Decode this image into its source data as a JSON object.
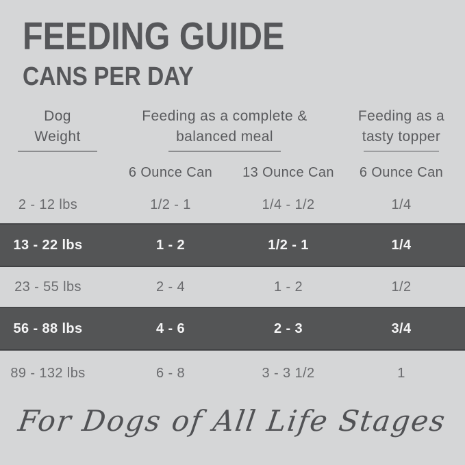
{
  "header": {
    "title": "FEEDING GUIDE",
    "subtitle": "CANS PER DAY"
  },
  "table": {
    "column_groups": [
      {
        "line1": "Dog",
        "line2": "Weight"
      },
      {
        "line1": "Feeding as a complete &",
        "line2": "balanced meal"
      },
      {
        "line1": "Feeding as a",
        "line2": "tasty topper"
      }
    ],
    "sub_headers": [
      "6 Ounce Can",
      "13 Ounce Can",
      "6 Ounce Can"
    ],
    "rows": [
      {
        "weight": "2 - 12 lbs",
        "meal_6oz": "1/2 - 1",
        "meal_13oz": "1/4 - 1/2",
        "topper_6oz": "1/4",
        "highlight": false
      },
      {
        "weight": "13 - 22 lbs",
        "meal_6oz": "1 - 2",
        "meal_13oz": "1/2 - 1",
        "topper_6oz": "1/4",
        "highlight": true
      },
      {
        "weight": "23 - 55 lbs",
        "meal_6oz": "2 - 4",
        "meal_13oz": "1 - 2",
        "topper_6oz": "1/2",
        "highlight": false
      },
      {
        "weight": "56 - 88 lbs",
        "meal_6oz": "4 - 6",
        "meal_13oz": "2 - 3",
        "topper_6oz": "3/4",
        "highlight": true
      },
      {
        "weight": "89 - 132 lbs",
        "meal_6oz": "6 - 8",
        "meal_13oz": "3 - 3 1/2",
        "topper_6oz": "1",
        "highlight": false
      }
    ]
  },
  "footer": {
    "tagline": "For Dogs of All Life Stages"
  },
  "colors": {
    "background": "#d5d6d7",
    "highlight_row_background": "#545556",
    "title_text": "#56575a",
    "body_text": "#6a6b6e",
    "highlight_row_text": "#f5f5f6",
    "underline": "#8c8d8f"
  },
  "chart_data": {
    "type": "table",
    "title": "FEEDING GUIDE",
    "subtitle": "CANS PER DAY",
    "columns": [
      "Dog Weight",
      "Feeding as a complete & balanced meal - 6 Ounce Can",
      "Feeding as a complete & balanced meal - 13 Ounce Can",
      "Feeding as a tasty topper - 6 Ounce Can"
    ],
    "rows": [
      [
        "2 - 12 lbs",
        "1/2 - 1",
        "1/4 - 1/2",
        "1/4"
      ],
      [
        "13 - 22 lbs",
        "1 - 2",
        "1/2 - 1",
        "1/4"
      ],
      [
        "23 - 55 lbs",
        "2 - 4",
        "1 - 2",
        "1/2"
      ],
      [
        "56 - 88 lbs",
        "4 - 6",
        "2 - 3",
        "3/4"
      ],
      [
        "89 - 132 lbs",
        "6 - 8",
        "3 - 3 1/2",
        "1"
      ]
    ],
    "annotations": [
      "For Dogs of All Life Stages"
    ],
    "layout_hints": {
      "highlighted_rows": [
        1,
        3
      ],
      "grid": "off",
      "style": "alternating dark gray highlight bands on light gray background"
    }
  }
}
